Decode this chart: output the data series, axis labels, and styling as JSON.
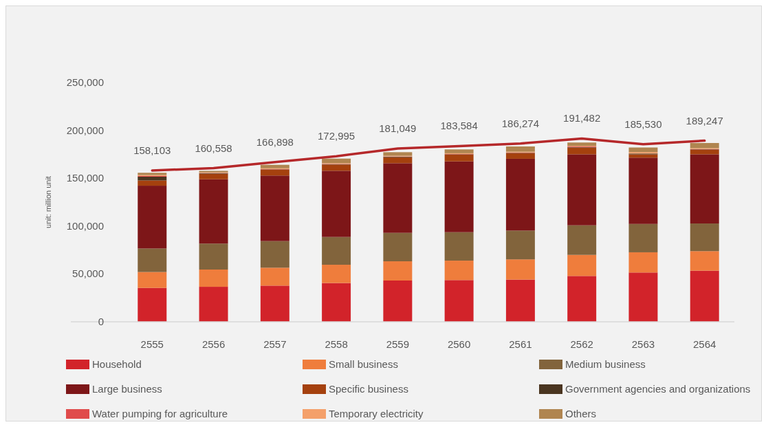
{
  "chart_data": {
    "type": "bar",
    "stacked": true,
    "ylabel": "unit: million unit",
    "categories": [
      "2555",
      "2556",
      "2557",
      "2558",
      "2559",
      "2560",
      "2561",
      "2562",
      "2563",
      "2564"
    ],
    "ylim": [
      0,
      250000
    ],
    "yticks": [
      0,
      {
        "value": 50000,
        "label": "50,000"
      },
      {
        "value": 100000,
        "label": "100,000"
      },
      {
        "value": 150000,
        "label": "150,000"
      },
      {
        "value": 200000,
        "label": "200,000"
      },
      {
        "value": 250000,
        "label": "250,000"
      }
    ],
    "grid": false,
    "legend": "bottom",
    "series": [
      {
        "name": "Household",
        "color": "#d2232a",
        "values": [
          35400,
          36600,
          37800,
          40500,
          43100,
          43600,
          44100,
          47900,
          51500,
          53400
        ]
      },
      {
        "name": "Small business",
        "color": "#ef7d3c",
        "values": [
          16600,
          18000,
          18700,
          19100,
          20100,
          20300,
          21100,
          22000,
          21100,
          20400
        ]
      },
      {
        "name": "Medium business",
        "color": "#82643c",
        "values": [
          24600,
          27100,
          27800,
          29000,
          29700,
          29700,
          30100,
          30900,
          29600,
          28900
        ]
      },
      {
        "name": "Large business",
        "color": "#7d1618",
        "values": [
          65600,
          67200,
          68500,
          69200,
          72800,
          74000,
          75000,
          74200,
          69300,
          72300
        ]
      },
      {
        "name": "Specific business",
        "color": "#a5410e",
        "values": [
          5500,
          5800,
          6000,
          6500,
          6200,
          7000,
          5800,
          7000,
          3500,
          4600
        ]
      },
      {
        "name": "Government agencies and organizations",
        "color": "#4a3520",
        "values": [
          3900,
          500,
          400,
          400,
          500,
          400,
          400,
          400,
          800,
          500
        ]
      },
      {
        "name": "Water pumping for agriculture",
        "color": "#e04b4b",
        "values": [
          700,
          300,
          300,
          300,
          300,
          300,
          300,
          700,
          null,
          300
        ]
      },
      {
        "name": "Temporary electricity",
        "color": "#f4a06a",
        "values": [
          1000,
          600,
          900,
          700,
          700,
          800,
          900,
          700,
          1500,
          1000
        ]
      },
      {
        "name": "Others",
        "color": "#b08550",
        "values": [
          2400,
          1600,
          3600,
          4800,
          3800,
          4000,
          5500,
          3500,
          4800,
          5400
        ]
      },
      {
        "type": "line",
        "color": "#b5282a",
        "values": [
          158103,
          160558,
          166898,
          172995,
          181049,
          183584,
          186274,
          191482,
          185530,
          189247
        ],
        "value_labels": [
          "158,103",
          "160,558",
          "166,898",
          "172,995",
          "181,049",
          "183,584",
          "186,274",
          "191,482",
          "185,530",
          "189,247"
        ]
      }
    ]
  }
}
